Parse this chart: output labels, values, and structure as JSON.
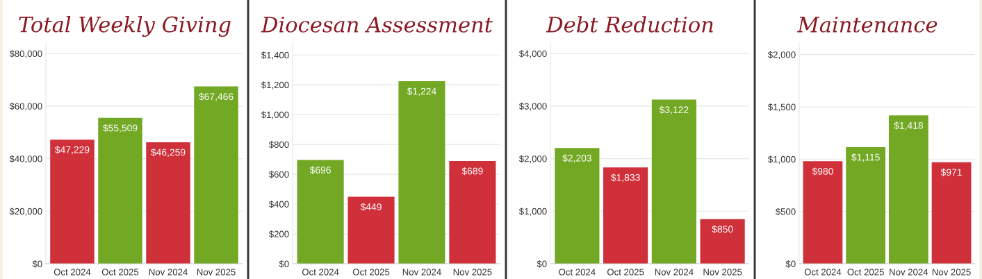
{
  "chart_data": [
    {
      "type": "bar",
      "title": "Total Weekly Giving",
      "categories": [
        "Oct 2024",
        "Oct 2025",
        "Nov 2024",
        "Nov 2025"
      ],
      "values": [
        47229,
        55509,
        46259,
        67466
      ],
      "colors": [
        "#d0303a",
        "#72a824",
        "#d0303a",
        "#72a824"
      ],
      "value_labels": [
        "$47,229",
        "$55,509",
        "$46,259",
        "$67,466"
      ],
      "ylim": [
        0,
        84000
      ],
      "yticks": [
        {
          "value": 0,
          "label": "$0"
        },
        {
          "value": 20000,
          "label": "$20,000"
        },
        {
          "value": 40000,
          "label": "$40,000"
        },
        {
          "value": 60000,
          "label": "$60,000"
        },
        {
          "value": 80000,
          "label": "$80,000"
        }
      ],
      "grid": "y",
      "legend": false
    },
    {
      "type": "bar",
      "title": "Diocesan Assessment",
      "categories": [
        "Oct 2024",
        "Oct 2025",
        "Nov 2024",
        "Nov 2025"
      ],
      "values": [
        696,
        449,
        1224,
        689
      ],
      "colors": [
        "#72a824",
        "#d0303a",
        "#72a824",
        "#d0303a"
      ],
      "value_labels": [
        "$696",
        "$449",
        "$1,224",
        "$689"
      ],
      "ylim": [
        0,
        1480
      ],
      "yticks": [
        {
          "value": 0,
          "label": "$0"
        },
        {
          "value": 200,
          "label": "$200"
        },
        {
          "value": 400,
          "label": "$400"
        },
        {
          "value": 600,
          "label": "$600"
        },
        {
          "value": 800,
          "label": "$800"
        },
        {
          "value": 1000,
          "label": "$1,000"
        },
        {
          "value": 1200,
          "label": "$1,200"
        },
        {
          "value": 1400,
          "label": "$1,400"
        }
      ],
      "grid": "y",
      "legend": false
    },
    {
      "type": "bar",
      "title": "Debt Reduction",
      "categories": [
        "Oct 2024",
        "Oct 2025",
        "Nov 2024",
        "Nov 2025"
      ],
      "values": [
        2203,
        1833,
        3122,
        850
      ],
      "colors": [
        "#72a824",
        "#d0303a",
        "#72a824",
        "#d0303a"
      ],
      "value_labels": [
        "$2,203",
        "$1,833",
        "$3,122",
        "$850"
      ],
      "ylim": [
        0,
        4200
      ],
      "yticks": [
        {
          "value": 0,
          "label": "$0"
        },
        {
          "value": 1000,
          "label": "$1,000"
        },
        {
          "value": 2000,
          "label": "$2,000"
        },
        {
          "value": 3000,
          "label": "$3,000"
        },
        {
          "value": 4000,
          "label": "$4,000"
        }
      ],
      "grid": "y",
      "legend": false
    },
    {
      "type": "bar",
      "title": "Maintenance",
      "categories": [
        "Oct 2024",
        "Oct 2025",
        "Nov 2024",
        "Nov 2025"
      ],
      "values": [
        980,
        1115,
        1418,
        971
      ],
      "colors": [
        "#d0303a",
        "#72a824",
        "#72a824",
        "#d0303a"
      ],
      "value_labels": [
        "$980",
        "$1,115",
        "$1,418",
        "$971"
      ],
      "ylim": [
        0,
        2110
      ],
      "yticks": [
        {
          "value": 0,
          "label": "$0"
        },
        {
          "value": 500,
          "label": "$500"
        },
        {
          "value": 1000,
          "label": "$1,000"
        },
        {
          "value": 1500,
          "label": "$1,500"
        },
        {
          "value": 2000,
          "label": "$2,000"
        }
      ],
      "grid": "y",
      "legend": false
    }
  ]
}
